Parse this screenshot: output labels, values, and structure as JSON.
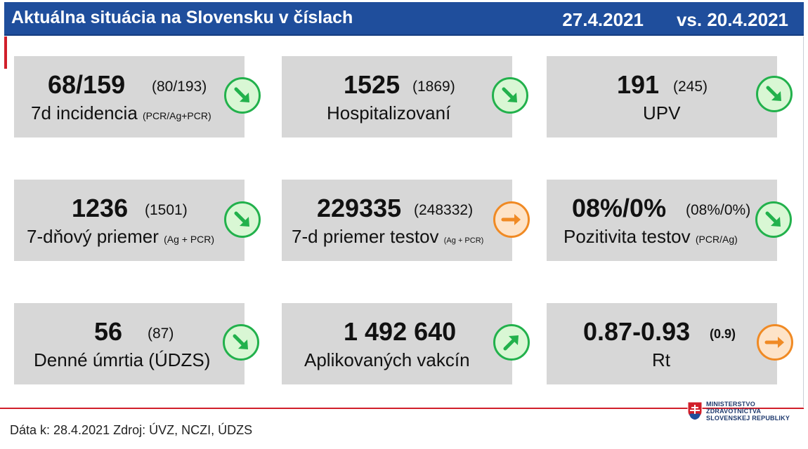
{
  "header": {
    "title": "Aktuálna situácia na Slovensku v číslach",
    "date": "27.4.2021",
    "vs_date": "vs. 20.4.2021"
  },
  "cards": [
    {
      "value": "68/159",
      "prev": "(80/193)",
      "label": "7d incidencia",
      "sub": "(PCR/Ag+PCR)",
      "trend": "down",
      "trend_color": "#22b14c"
    },
    {
      "value": "1525",
      "prev": "(1869)",
      "label": "Hospitalizovaní",
      "sub": "",
      "trend": "down",
      "trend_color": "#22b14c"
    },
    {
      "value": "191",
      "prev": "(245)",
      "label": "UPV",
      "sub": "",
      "trend": "down",
      "trend_color": "#22b14c"
    },
    {
      "value": "1236",
      "prev": "(1501)",
      "label": "7-dňový priemer",
      "sub": "(Ag + PCR)",
      "trend": "down",
      "trend_color": "#22b14c"
    },
    {
      "value": "229335",
      "prev": "(248332)",
      "label": "7-d priemer testov",
      "sub": "(Ag + PCR)",
      "trend": "flat",
      "trend_color": "#f08a24"
    },
    {
      "value": "08%/0%",
      "prev": "(08%/0%)",
      "label": "Pozitivita testov",
      "sub": "(PCR/Ag)",
      "trend": "down",
      "trend_color": "#22b14c"
    },
    {
      "value": "56",
      "prev": "(87)",
      "label": "Denné úmrtia (ÚDZS)",
      "sub": "",
      "trend": "down",
      "trend_color": "#22b14c"
    },
    {
      "value": "1 492 640",
      "prev": "",
      "label": "Aplikovaných vakcín",
      "sub": "",
      "trend": "up",
      "trend_color": "#22b14c"
    },
    {
      "value": "0.87-0.93",
      "prev": "(0.9)",
      "label": "Rt",
      "sub": "",
      "trend": "flat",
      "trend_color": "#f08a24"
    }
  ],
  "footer": {
    "source": "Dáta k: 28.4.2021 Zdroj: ÚVZ, NCZI, ÚDZS"
  },
  "logo": {
    "line1": "MINISTERSTVO",
    "line2": "ZDRAVOTNÍCTVA",
    "line3": "SLOVENSKEJ REPUBLIKY"
  },
  "colors": {
    "header_bg": "#1f4e9c",
    "accent_red": "#d11f2a",
    "card_bg": "#d7d7d7",
    "trend_green": "#22b14c",
    "trend_orange": "#f08a24"
  }
}
